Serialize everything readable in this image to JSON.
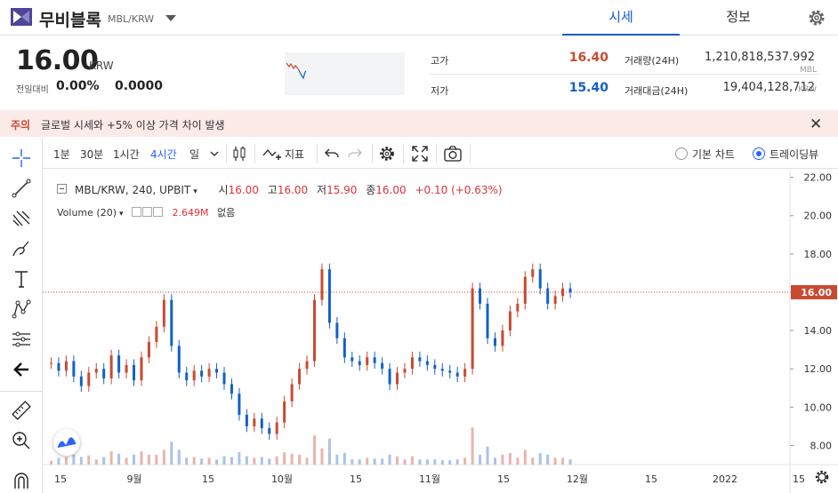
{
  "header": {
    "coin_name": "무비블록",
    "pair": "MBL/KRW",
    "tabs": [
      {
        "label": "시세",
        "active": true
      },
      {
        "label": "정보",
        "active": false
      }
    ],
    "accent_color": "#115dcb"
  },
  "summary": {
    "price": "16.00",
    "unit": "KRW",
    "change_label": "전일대비",
    "change_pct": "0.00%",
    "change_value": "0.0000",
    "high_label": "고가",
    "high": "16.40",
    "low_label": "저가",
    "low": "15.40",
    "volume_label": "거래량(24H)",
    "volume": "1,210,818,537.992",
    "volume_unit": "MBL",
    "value_label": "거래대금(24H)",
    "value": "19,404,128,712",
    "value_unit": "KRW"
  },
  "notice": {
    "tag": "주의",
    "text": "글로벌 시세와 +5% 이상 가격 차이 발생",
    "close_icon": "close-icon"
  },
  "left_tools": [
    "crosshair-icon",
    "trend-line-icon",
    "fib-icon",
    "brush-icon",
    "text-icon",
    "pattern-icon",
    "prediction-icon",
    "back-arrow-icon",
    "ruler-icon",
    "zoom-icon",
    "magnet-icon"
  ],
  "chart_toolbar": {
    "timeframes": [
      {
        "label": "1분",
        "active": false
      },
      {
        "label": "30분",
        "active": false
      },
      {
        "label": "1시간",
        "active": false
      },
      {
        "label": "4시간",
        "active": true
      },
      {
        "label": "일",
        "active": false
      }
    ],
    "indicators_label": "지표",
    "basic_chart_label": "기본 차트",
    "tradingview_label": "트레이딩뷰"
  },
  "legend": {
    "symbol": "MBL/KRW, 240, UPBIT",
    "o_label": "시",
    "o": "16.00",
    "h_label": "고",
    "h": "16.00",
    "l_label": "저",
    "l": "15.90",
    "c_label": "종",
    "c": "16.00",
    "change": "+0.10 (+0.63%)",
    "volume_label": "Volume (20)",
    "volume_value": "2.649M",
    "volume_extra": "없음"
  },
  "chart_data": {
    "type": "line",
    "x": [
      "15",
      "15",
      "15",
      "15",
      "15",
      "15",
      "15",
      "15",
      "15",
      "15",
      "15",
      "15",
      "15",
      "15",
      "15",
      "15",
      "15",
      "15",
      "15",
      "15",
      "15",
      "15",
      "15",
      "15",
      "15",
      "15",
      "15",
      "15",
      "15",
      "15",
      "15",
      "15",
      "15",
      "15",
      "15",
      "15",
      "15",
      "15",
      "15",
      "15",
      "15",
      "15",
      "15",
      "15",
      "15",
      "15",
      "15",
      "15",
      "15",
      "15",
      "15",
      "15",
      "15",
      "15",
      "15",
      "15",
      "15",
      "15",
      "15",
      "15",
      "15",
      "15",
      "15",
      "15",
      "15",
      "15",
      "15",
      "15",
      "15",
      "15"
    ],
    "price": [
      12.3,
      11.9,
      12.4,
      11.6,
      11.1,
      11.8,
      12.0,
      11.5,
      12.7,
      11.8,
      12.2,
      11.4,
      12.6,
      13.4,
      14.2,
      15.6,
      13.2,
      11.8,
      11.4,
      11.9,
      11.6,
      12.0,
      11.8,
      11.2,
      10.7,
      9.6,
      9.0,
      9.4,
      8.9,
      8.6,
      9.2,
      10.3,
      11.2,
      12.0,
      12.4,
      15.6,
      17.2,
      14.4,
      13.6,
      12.6,
      12.4,
      12.2,
      12.6,
      12.3,
      12.0,
      11.2,
      11.8,
      12.0,
      12.6,
      12.4,
      12.2,
      12.0,
      11.9,
      11.8,
      11.6,
      12.0,
      16.2,
      15.4,
      13.6,
      13.2,
      14.0,
      15.0,
      15.4,
      16.8,
      17.2,
      16.2,
      15.4,
      15.8,
      16.2,
      16.0
    ],
    "x_ticks": [
      "15",
      "9월",
      "15",
      "10월",
      "15",
      "11월",
      "15",
      "12월",
      "15",
      "2022",
      "15"
    ],
    "y_ticks": [
      "22.00",
      "20.00",
      "18.00",
      "16.00",
      "14.00",
      "12.00",
      "10.00",
      "8.00"
    ],
    "ylim": [
      7.0,
      22.4
    ],
    "last_price_label": "16.00",
    "up_color": "#c84a31",
    "down_color": "#1261c4"
  }
}
